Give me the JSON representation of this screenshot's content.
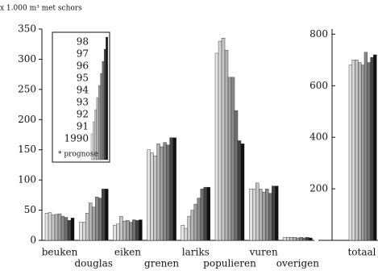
{
  "chart_data": [
    {
      "type": "bar",
      "title": "x 1.000 m³ met schors",
      "categories": [
        "beuken",
        "douglas",
        "eiken",
        "grenen",
        "lariks",
        "populieren",
        "vuren",
        "overigen"
      ],
      "ylim": [
        0,
        350
      ],
      "yticks": [
        0,
        50,
        100,
        150,
        200,
        250,
        300,
        350
      ],
      "legend_note": "* prognose",
      "series": [
        {
          "name": "1990",
          "color": "#e4e4e4",
          "values": [
            45,
            30,
            25,
            150,
            25,
            310,
            85,
            5
          ]
        },
        {
          "name": "91",
          "color": "#d6d6d6",
          "values": [
            46,
            30,
            27,
            145,
            20,
            330,
            85,
            5
          ]
        },
        {
          "name": "92",
          "color": "#c6c6c6",
          "values": [
            42,
            45,
            40,
            140,
            40,
            335,
            95,
            5
          ]
        },
        {
          "name": "93",
          "color": "#b4b4b4",
          "values": [
            43,
            62,
            32,
            160,
            50,
            315,
            85,
            5
          ]
        },
        {
          "name": "94",
          "color": "#a0a0a0",
          "values": [
            44,
            55,
            33,
            155,
            60,
            270,
            80,
            4
          ]
        },
        {
          "name": "95",
          "color": "#8a8a8a",
          "values": [
            40,
            72,
            30,
            162,
            70,
            270,
            85,
            5
          ]
        },
        {
          "name": "96",
          "color": "#707070",
          "values": [
            38,
            70,
            34,
            158,
            85,
            215,
            78,
            4
          ]
        },
        {
          "name": "97",
          "color": "#444444",
          "values": [
            33,
            85,
            33,
            170,
            88,
            165,
            90,
            5
          ]
        },
        {
          "name": "98",
          "color": "#111111",
          "values": [
            37,
            85,
            34,
            170,
            88,
            160,
            90,
            4
          ]
        }
      ]
    },
    {
      "type": "bar",
      "categories": [
        "totaal"
      ],
      "ylim": [
        0,
        820
      ],
      "yticks": [
        200,
        400,
        600,
        800
      ],
      "series": [
        {
          "values": [
            680
          ]
        },
        {
          "values": [
            700
          ]
        },
        {
          "values": [
            700
          ]
        },
        {
          "values": [
            690
          ]
        },
        {
          "values": [
            680
          ]
        },
        {
          "values": [
            730
          ]
        },
        {
          "values": [
            690
          ]
        },
        {
          "values": [
            710
          ]
        },
        {
          "values": [
            720
          ]
        }
      ]
    }
  ]
}
